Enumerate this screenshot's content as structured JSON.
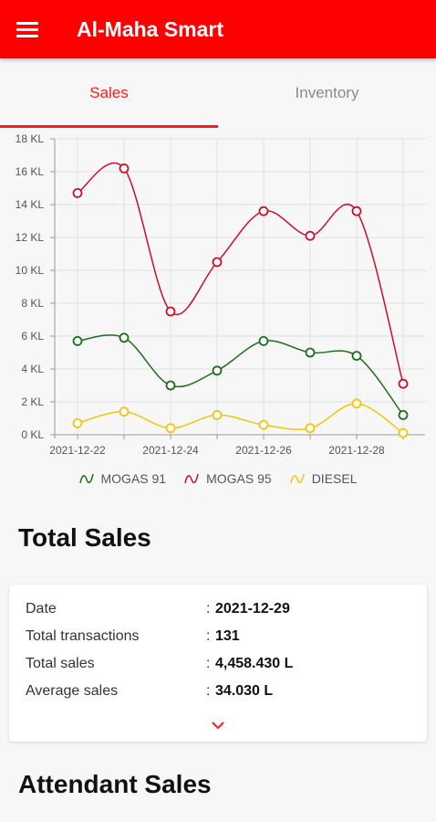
{
  "app": {
    "title": "Al-Maha Smart"
  },
  "tabs": [
    {
      "label": "Sales",
      "active": true
    },
    {
      "label": "Inventory",
      "active": false
    }
  ],
  "chart_data": {
    "type": "line",
    "x": [
      "2021-12-22",
      "2021-12-23",
      "2021-12-24",
      "2021-12-25",
      "2021-12-26",
      "2021-12-27",
      "2021-12-28",
      "2021-12-29"
    ],
    "x_tick_labels": [
      "2021-12-22",
      "2021-12-24",
      "2021-12-26",
      "2021-12-28"
    ],
    "y_tick_labels": [
      "0 KL",
      "2 KL",
      "4 KL",
      "6 KL",
      "8 KL",
      "10 KL",
      "12 KL",
      "14 KL",
      "16 KL",
      "18 KL"
    ],
    "ylim": [
      0,
      18
    ],
    "y_unit": "KL",
    "grid": true,
    "legend_position": "bottom",
    "series": [
      {
        "name": "MOGAS 91",
        "color": "#1e6b1e",
        "values": [
          5.7,
          5.9,
          3.0,
          3.9,
          5.7,
          5.0,
          4.8,
          1.2
        ]
      },
      {
        "name": "MOGAS 95",
        "color": "#c8102e",
        "values": [
          14.7,
          16.2,
          7.5,
          10.5,
          13.6,
          12.1,
          13.6,
          3.1
        ]
      },
      {
        "name": "DIESEL",
        "color": "#f2c40f",
        "values": [
          0.7,
          1.4,
          0.4,
          1.2,
          0.6,
          0.4,
          1.9,
          0.1
        ]
      }
    ]
  },
  "total_sales": {
    "title": "Total Sales",
    "rows": [
      {
        "label": "Date",
        "value": "2021-12-29"
      },
      {
        "label": "Total transactions",
        "value": "131"
      },
      {
        "label": "Total sales",
        "value": "4,458.430 L"
      },
      {
        "label": "Average sales",
        "value": "34.030 L"
      }
    ],
    "separator": ":",
    "expand_icon": "chevron-down-icon"
  },
  "attendant_sales": {
    "title": "Attendant Sales"
  },
  "colors": {
    "primary": "#ff0000",
    "accent": "#ff1a1a"
  }
}
